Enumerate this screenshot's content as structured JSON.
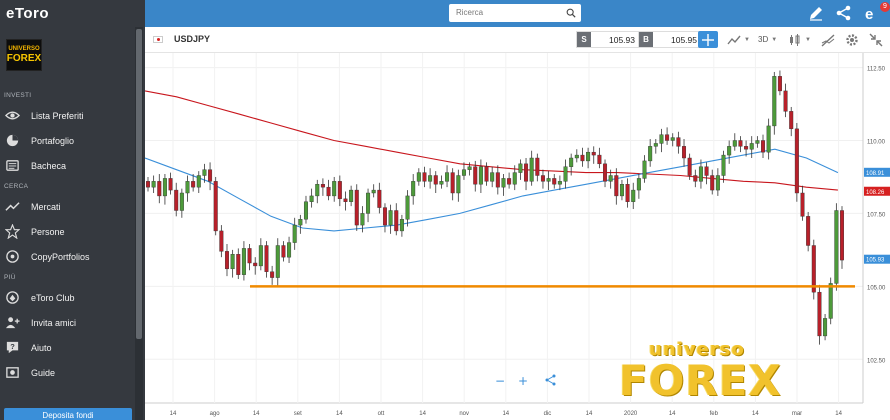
{
  "app": {
    "logo_text": "eToro"
  },
  "header": {
    "search_placeholder": "Ricerca",
    "notification_count": "9"
  },
  "sidebar": {
    "avatar_lines": [
      "UNIVERSO",
      "FOREX"
    ],
    "sections": [
      {
        "title": "INVESTI",
        "items": [
          {
            "label": "Lista Preferiti",
            "icon": "eye-icon"
          },
          {
            "label": "Portafoglio",
            "icon": "pie-chart-icon"
          },
          {
            "label": "Bacheca",
            "icon": "feed-icon"
          }
        ]
      },
      {
        "title": "CERCA",
        "items": [
          {
            "label": "Mercati",
            "icon": "trend-icon"
          },
          {
            "label": "Persone",
            "icon": "star-icon"
          },
          {
            "label": "CopyPortfolios",
            "icon": "portfolio-icon"
          }
        ]
      },
      {
        "title": "PIÙ",
        "items": [
          {
            "label": "eToro Club",
            "icon": "club-icon"
          },
          {
            "label": "Invita amici",
            "icon": "invite-icon"
          },
          {
            "label": "Aiuto",
            "icon": "help-icon"
          },
          {
            "label": "Guide",
            "icon": "guide-icon"
          }
        ]
      }
    ],
    "deposit_label": "Deposita fondi"
  },
  "toolbar": {
    "symbol": "USDJPY",
    "sell_label": "S",
    "sell_price": "105.93",
    "buy_label": "B",
    "buy_price": "105.95",
    "timeframe": "3D"
  },
  "chart_data": {
    "type": "candlestick",
    "instrument": "USDJPY",
    "y_ticks": [
      "112.50",
      "110.00",
      "107.50",
      "105.00",
      "102.50"
    ],
    "ylim": [
      101.0,
      113.0
    ],
    "x_ticks": [
      "14",
      "ago",
      "14",
      "set",
      "14",
      "ott",
      "14",
      "nov",
      "14",
      "dic",
      "14",
      "2020",
      "14",
      "feb",
      "14",
      "mar",
      "14"
    ],
    "price_tags": [
      {
        "value": "108.91",
        "color": "#3a8fd9"
      },
      {
        "value": "108.26",
        "color": "#d62020"
      },
      {
        "value": "105.93",
        "color": "#3a8fd9"
      }
    ],
    "horizontal_line": {
      "value": 105.0,
      "color": "#f08a00"
    },
    "close_series": [
      108.4,
      108.6,
      108.1,
      108.7,
      108.3,
      107.6,
      108.2,
      108.6,
      108.4,
      108.8,
      109.0,
      108.6,
      106.9,
      106.2,
      105.6,
      106.1,
      105.4,
      106.3,
      105.8,
      105.7,
      106.4,
      105.5,
      105.3,
      106.4,
      106.0,
      106.5,
      107.1,
      107.3,
      107.9,
      108.1,
      108.5,
      108.4,
      108.1,
      108.6,
      108.0,
      107.9,
      108.3,
      107.1,
      107.5,
      108.2,
      108.3,
      107.7,
      107.1,
      107.6,
      106.9,
      107.3,
      108.1,
      108.6,
      108.9,
      108.6,
      108.8,
      108.5,
      108.6,
      108.9,
      108.2,
      108.8,
      109.0,
      109.1,
      108.5,
      109.1,
      108.6,
      108.9,
      108.4,
      108.7,
      108.5,
      108.9,
      109.2,
      108.6,
      109.4,
      108.8,
      108.6,
      108.7,
      108.5,
      108.6,
      109.1,
      109.4,
      109.5,
      109.3,
      109.6,
      109.5,
      109.2,
      108.6,
      108.8,
      108.1,
      108.5,
      107.9,
      108.3,
      108.7,
      109.3,
      109.8,
      109.9,
      110.2,
      110.0,
      110.1,
      109.8,
      109.4,
      108.8,
      108.6,
      109.1,
      108.8,
      108.3,
      108.8,
      109.5,
      109.8,
      110.0,
      109.8,
      109.7,
      109.9,
      110.0,
      109.6,
      110.5,
      112.2,
      111.7,
      111.0,
      110.4,
      108.2,
      107.4,
      106.4,
      104.8,
      103.3,
      103.9,
      105.1,
      107.6,
      105.9
    ],
    "ma_200_red": [
      111.7,
      111.5,
      111.2,
      110.9,
      110.6,
      110.3,
      110.0,
      109.8,
      109.6,
      109.4,
      109.2,
      109.1,
      109.0,
      108.95,
      108.9,
      108.9,
      108.85,
      108.8,
      108.7,
      108.6,
      108.55,
      108.4,
      108.3
    ],
    "ma_50_blue": [
      109.4,
      109.0,
      108.6,
      108.0,
      107.4,
      107.0,
      106.9,
      107.0,
      107.1,
      107.3,
      107.5,
      107.8,
      108.1,
      108.3,
      108.5,
      108.7,
      108.9,
      109.1,
      109.3,
      109.5,
      109.7,
      109.4,
      108.9
    ]
  },
  "watermark": {
    "line1": "universo",
    "line2": "FOREX"
  }
}
